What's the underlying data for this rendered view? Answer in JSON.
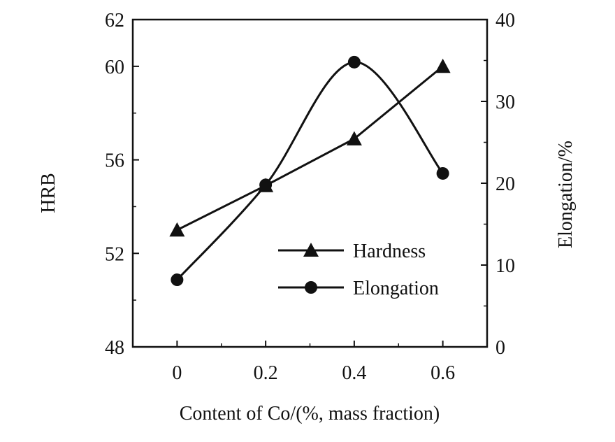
{
  "chart_data": {
    "type": "line",
    "xlabel": "Content of Co/(%, mass fraction)",
    "ylabel_left": "HRB",
    "ylabel_right": "Elongation/%",
    "xlim": [
      -0.1,
      0.7
    ],
    "ylim_left": [
      48,
      62
    ],
    "ylim_right": [
      0,
      40
    ],
    "x_ticks": [
      {
        "value": 0,
        "label": "0"
      },
      {
        "value": 0.2,
        "label": "0.2"
      },
      {
        "value": 0.4,
        "label": "0.4"
      },
      {
        "value": 0.6,
        "label": "0.6"
      }
    ],
    "y_left_ticks": [
      {
        "value": 48,
        "label": "48"
      },
      {
        "value": 52,
        "label": "52"
      },
      {
        "value": 56,
        "label": "56"
      },
      {
        "value": 60,
        "label": "60"
      },
      {
        "value": 62,
        "label": "62"
      }
    ],
    "y_left_minor": [
      50,
      54,
      58
    ],
    "y_right_ticks": [
      {
        "value": 0,
        "label": "0"
      },
      {
        "value": 10,
        "label": "10"
      },
      {
        "value": 20,
        "label": "20"
      },
      {
        "value": 30,
        "label": "30"
      },
      {
        "value": 40,
        "label": "40"
      }
    ],
    "y_right_minor": [
      5,
      15,
      25,
      35
    ],
    "x_minor": [
      0.1,
      0.3,
      0.5
    ],
    "grid": false,
    "legend_position": "center-right",
    "series": [
      {
        "name": "Hardness",
        "axis": "left",
        "marker": "triangle",
        "smooth": false,
        "x": [
          0,
          0.2,
          0.4,
          0.6
        ],
        "y": [
          53.0,
          54.9,
          56.9,
          60.0
        ]
      },
      {
        "name": "Elongation",
        "axis": "right",
        "marker": "circle",
        "smooth": true,
        "x": [
          0,
          0.2,
          0.4,
          0.6
        ],
        "y": [
          8.2,
          19.8,
          34.8,
          21.2
        ]
      }
    ]
  }
}
